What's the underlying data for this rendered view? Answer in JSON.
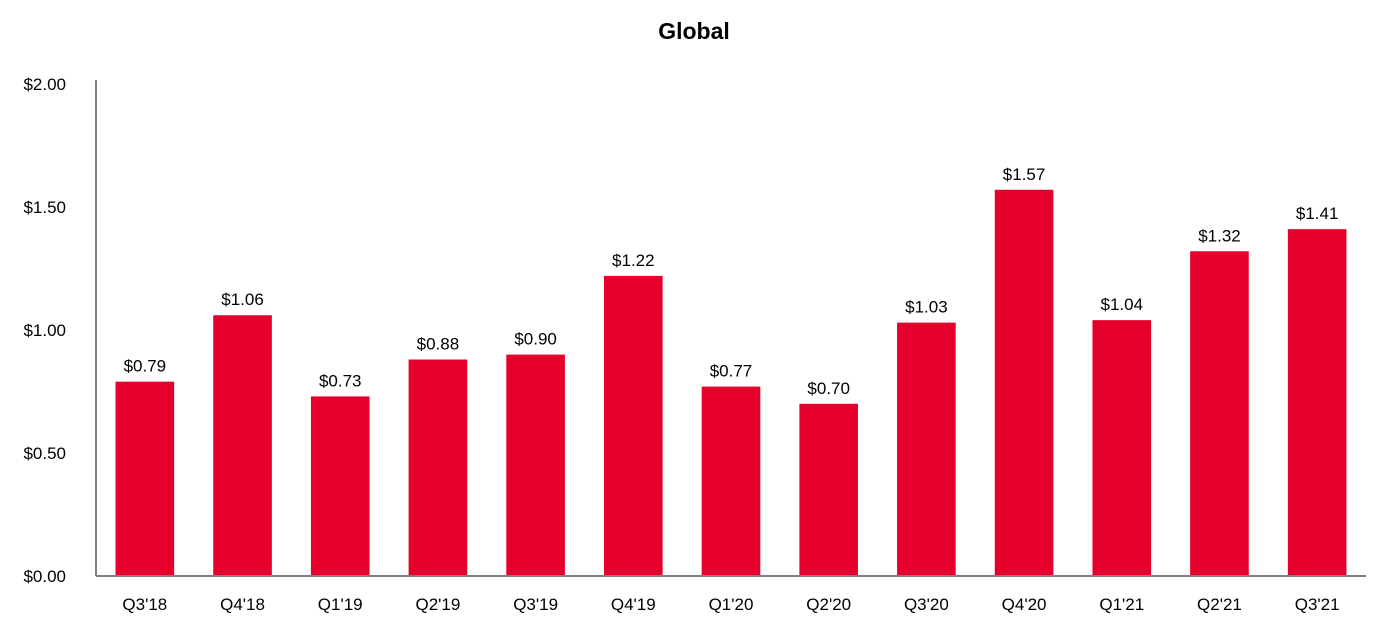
{
  "chart_data": {
    "type": "bar",
    "title": "Global",
    "xlabel": "",
    "ylabel": "",
    "ylim": [
      0,
      2.0
    ],
    "yticks": [
      "$0.00",
      "$0.50",
      "$1.00",
      "$1.50",
      "$2.00"
    ],
    "ytick_values": [
      0,
      0.5,
      1.0,
      1.5,
      2.0
    ],
    "categories": [
      "Q3'18",
      "Q4'18",
      "Q1'19",
      "Q2'19",
      "Q3'19",
      "Q4'19",
      "Q1'20",
      "Q2'20",
      "Q3'20",
      "Q4'20",
      "Q1'21",
      "Q2'21",
      "Q3'21"
    ],
    "values": [
      0.79,
      1.06,
      0.73,
      0.88,
      0.9,
      1.22,
      0.77,
      0.7,
      1.03,
      1.57,
      1.04,
      1.32,
      1.41
    ],
    "data_labels": [
      "$0.79",
      "$1.06",
      "$0.73",
      "$0.88",
      "$0.90",
      "$1.22",
      "$0.77",
      "$0.70",
      "$1.03",
      "$1.57",
      "$1.04",
      "$1.32",
      "$1.41"
    ],
    "bar_color": "#E5002B",
    "grid": false,
    "legend": "none"
  }
}
